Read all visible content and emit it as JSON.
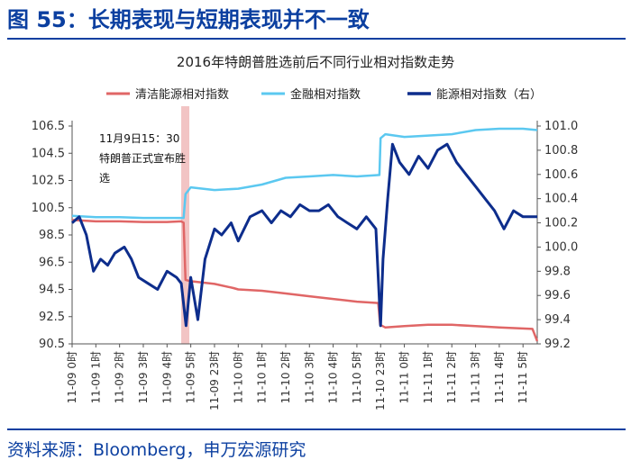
{
  "figure": {
    "title": "图 55：长期表现与短期表现并不一致",
    "source": "资料来源：Bloomberg，申万宏源研究"
  },
  "chart_data": {
    "type": "line",
    "title": "2016年特朗普胜选前后不同行业相对指数走势",
    "annotation": [
      "11月9日15：30",
      "特朗普正式宣布胜",
      "选"
    ],
    "x_tick_labels": [
      "11-09 0时",
      "11-09 1时",
      "11-09 2时",
      "11-09 3时",
      "11-09 4时",
      "11-09 5时",
      "11-09 23时",
      "11-10 0时",
      "11-10 1时",
      "11-10 2时",
      "11-10 3时",
      "11-10 4时",
      "11-10 5时",
      "11-10 23时",
      "11-11 0时",
      "11-11 1时",
      "11-11 2时",
      "11-11 3时",
      "11-11 4时",
      "11-11 5时"
    ],
    "x_range": [
      0,
      19.6
    ],
    "left_axis": {
      "ylim": [
        90.5,
        106.5
      ],
      "ticks": [
        "90.5",
        "92.5",
        "94.5",
        "96.5",
        "98.5",
        "100.5",
        "102.5",
        "104.5",
        "106.5"
      ]
    },
    "right_axis": {
      "ylim": [
        99.2,
        101.0
      ],
      "ticks": [
        "99.2",
        "99.4",
        "99.6",
        "99.8",
        "100.0",
        "100.2",
        "100.4",
        "100.6",
        "100.8",
        "101.0"
      ]
    },
    "event_x": 4.75,
    "series": [
      {
        "name": "清洁能源相对指数",
        "axis": "left",
        "color": "#e06666",
        "points": [
          [
            0,
            99.6
          ],
          [
            0.5,
            99.55
          ],
          [
            1,
            99.5
          ],
          [
            2,
            99.5
          ],
          [
            3,
            99.45
          ],
          [
            4,
            99.45
          ],
          [
            4.6,
            99.5
          ],
          [
            4.7,
            99.4
          ],
          [
            4.78,
            95.2
          ],
          [
            5,
            95.1
          ],
          [
            6,
            94.9
          ],
          [
            6.8,
            94.6
          ],
          [
            7,
            94.5
          ],
          [
            8,
            94.4
          ],
          [
            9,
            94.2
          ],
          [
            10,
            94.0
          ],
          [
            11,
            93.8
          ],
          [
            12,
            93.6
          ],
          [
            12.9,
            93.5
          ],
          [
            12.98,
            91.9
          ],
          [
            13.2,
            91.7
          ],
          [
            14,
            91.8
          ],
          [
            15,
            91.9
          ],
          [
            16,
            91.9
          ],
          [
            17,
            91.8
          ],
          [
            18,
            91.7
          ],
          [
            19.4,
            91.6
          ],
          [
            19.6,
            90.7
          ]
        ]
      },
      {
        "name": "金融相对指数",
        "axis": "left",
        "color": "#5bc8f0",
        "points": [
          [
            0,
            99.9
          ],
          [
            1,
            99.8
          ],
          [
            2,
            99.8
          ],
          [
            3,
            99.75
          ],
          [
            4,
            99.75
          ],
          [
            4.7,
            99.75
          ],
          [
            4.78,
            101.5
          ],
          [
            5,
            102.0
          ],
          [
            6,
            101.8
          ],
          [
            7,
            101.9
          ],
          [
            8,
            102.2
          ],
          [
            9,
            102.7
          ],
          [
            10,
            102.8
          ],
          [
            11,
            102.9
          ],
          [
            12,
            102.8
          ],
          [
            12.95,
            102.9
          ],
          [
            13.0,
            105.6
          ],
          [
            13.2,
            105.9
          ],
          [
            14,
            105.7
          ],
          [
            15,
            105.8
          ],
          [
            16,
            105.9
          ],
          [
            17,
            106.2
          ],
          [
            18,
            106.3
          ],
          [
            19,
            106.3
          ],
          [
            19.6,
            106.2
          ]
        ]
      },
      {
        "name": "能源相对指数（右）",
        "axis": "right",
        "color": "#0d2d8c",
        "points": [
          [
            0,
            100.2
          ],
          [
            0.3,
            100.25
          ],
          [
            0.6,
            100.1
          ],
          [
            0.9,
            99.8
          ],
          [
            1.2,
            99.9
          ],
          [
            1.5,
            99.85
          ],
          [
            1.8,
            99.95
          ],
          [
            2.2,
            100.0
          ],
          [
            2.5,
            99.9
          ],
          [
            2.8,
            99.75
          ],
          [
            3.2,
            99.7
          ],
          [
            3.6,
            99.65
          ],
          [
            4.0,
            99.8
          ],
          [
            4.4,
            99.75
          ],
          [
            4.6,
            99.7
          ],
          [
            4.8,
            99.35
          ],
          [
            5.0,
            99.75
          ],
          [
            5.3,
            99.4
          ],
          [
            5.6,
            99.9
          ],
          [
            6.0,
            100.15
          ],
          [
            6.3,
            100.1
          ],
          [
            6.7,
            100.2
          ],
          [
            7.0,
            100.05
          ],
          [
            7.5,
            100.25
          ],
          [
            8.0,
            100.3
          ],
          [
            8.4,
            100.2
          ],
          [
            8.8,
            100.3
          ],
          [
            9.2,
            100.25
          ],
          [
            9.6,
            100.35
          ],
          [
            10.0,
            100.3
          ],
          [
            10.4,
            100.3
          ],
          [
            10.8,
            100.35
          ],
          [
            11.2,
            100.25
          ],
          [
            11.6,
            100.2
          ],
          [
            12.0,
            100.15
          ],
          [
            12.4,
            100.25
          ],
          [
            12.8,
            100.15
          ],
          [
            13.0,
            99.35
          ],
          [
            13.1,
            99.9
          ],
          [
            13.3,
            100.4
          ],
          [
            13.5,
            100.85
          ],
          [
            13.8,
            100.7
          ],
          [
            14.2,
            100.6
          ],
          [
            14.6,
            100.75
          ],
          [
            15.0,
            100.65
          ],
          [
            15.4,
            100.8
          ],
          [
            15.8,
            100.85
          ],
          [
            16.2,
            100.7
          ],
          [
            16.6,
            100.6
          ],
          [
            17.0,
            100.5
          ],
          [
            17.4,
            100.4
          ],
          [
            17.8,
            100.3
          ],
          [
            18.2,
            100.15
          ],
          [
            18.6,
            100.3
          ],
          [
            19.0,
            100.25
          ],
          [
            19.6,
            100.25
          ]
        ]
      }
    ]
  }
}
